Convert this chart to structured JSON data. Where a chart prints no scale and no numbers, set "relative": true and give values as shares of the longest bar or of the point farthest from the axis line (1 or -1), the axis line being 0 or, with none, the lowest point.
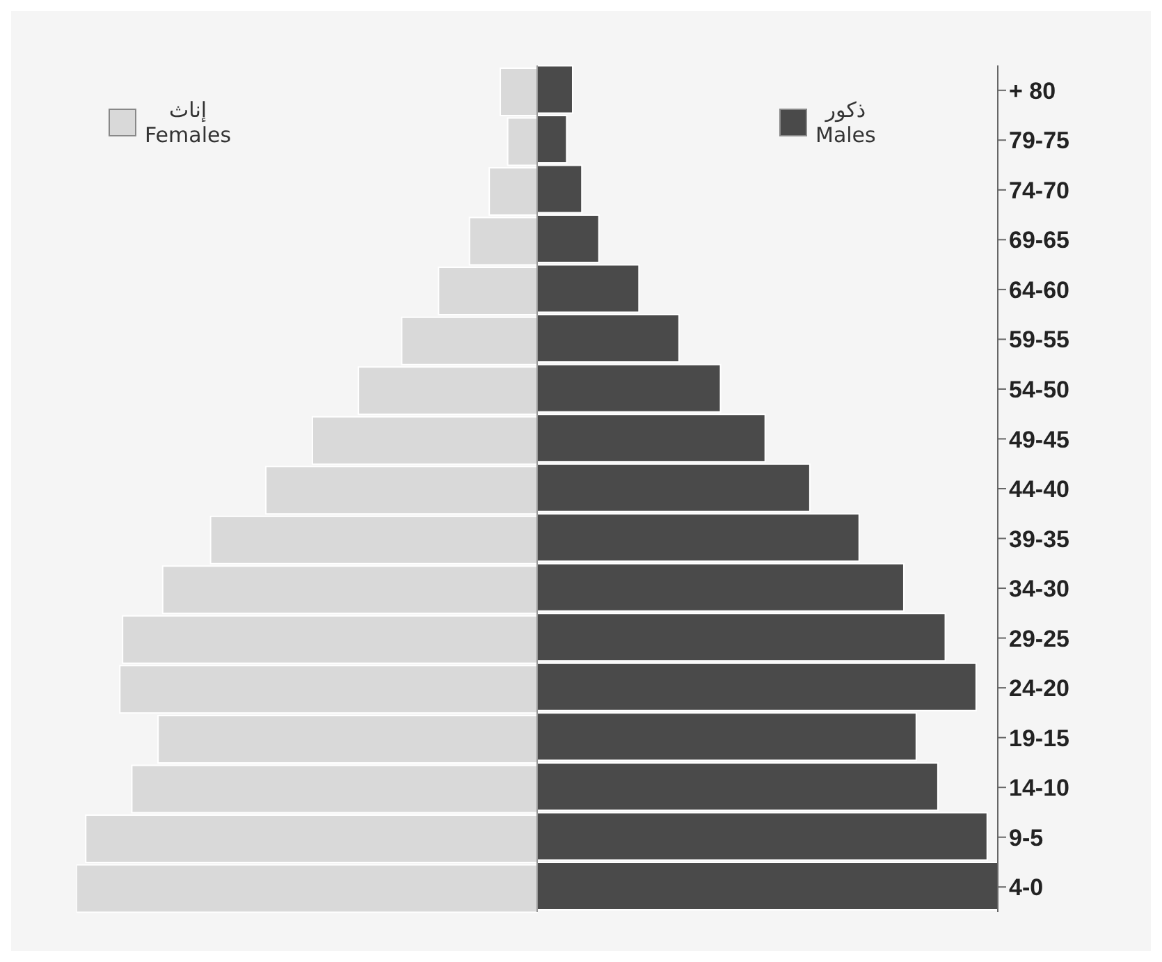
{
  "chart_data": {
    "type": "bar",
    "orientation": "horizontal",
    "relative": true,
    "legend": "top",
    "categories": [
      "+ 80",
      "79-75",
      "74-70",
      "69-65",
      "64-60",
      "59-55",
      "54-50",
      "49-45",
      "44-40",
      "39-35",
      "34-30",
      "29-25",
      "24-20",
      "19-15",
      "14-10",
      "9-5",
      "4-0"
    ],
    "series": [
      {
        "name": "إناث Females",
        "color": "#d9d9d9",
        "values": [
          -0.08,
          -0.064,
          -0.104,
          -0.147,
          -0.214,
          -0.294,
          -0.388,
          -0.488,
          -0.589,
          -0.709,
          -0.813,
          -0.9,
          -0.906,
          -0.823,
          -0.88,
          -0.98,
          -1
        ]
      },
      {
        "name": "ذكور Males",
        "color": "#4a4a4a",
        "values": [
          0.077,
          0.064,
          0.097,
          0.134,
          0.221,
          0.308,
          0.398,
          0.495,
          0.592,
          0.699,
          0.796,
          0.886,
          0.953,
          0.823,
          0.87,
          0.977,
          1
        ]
      }
    ]
  }
}
